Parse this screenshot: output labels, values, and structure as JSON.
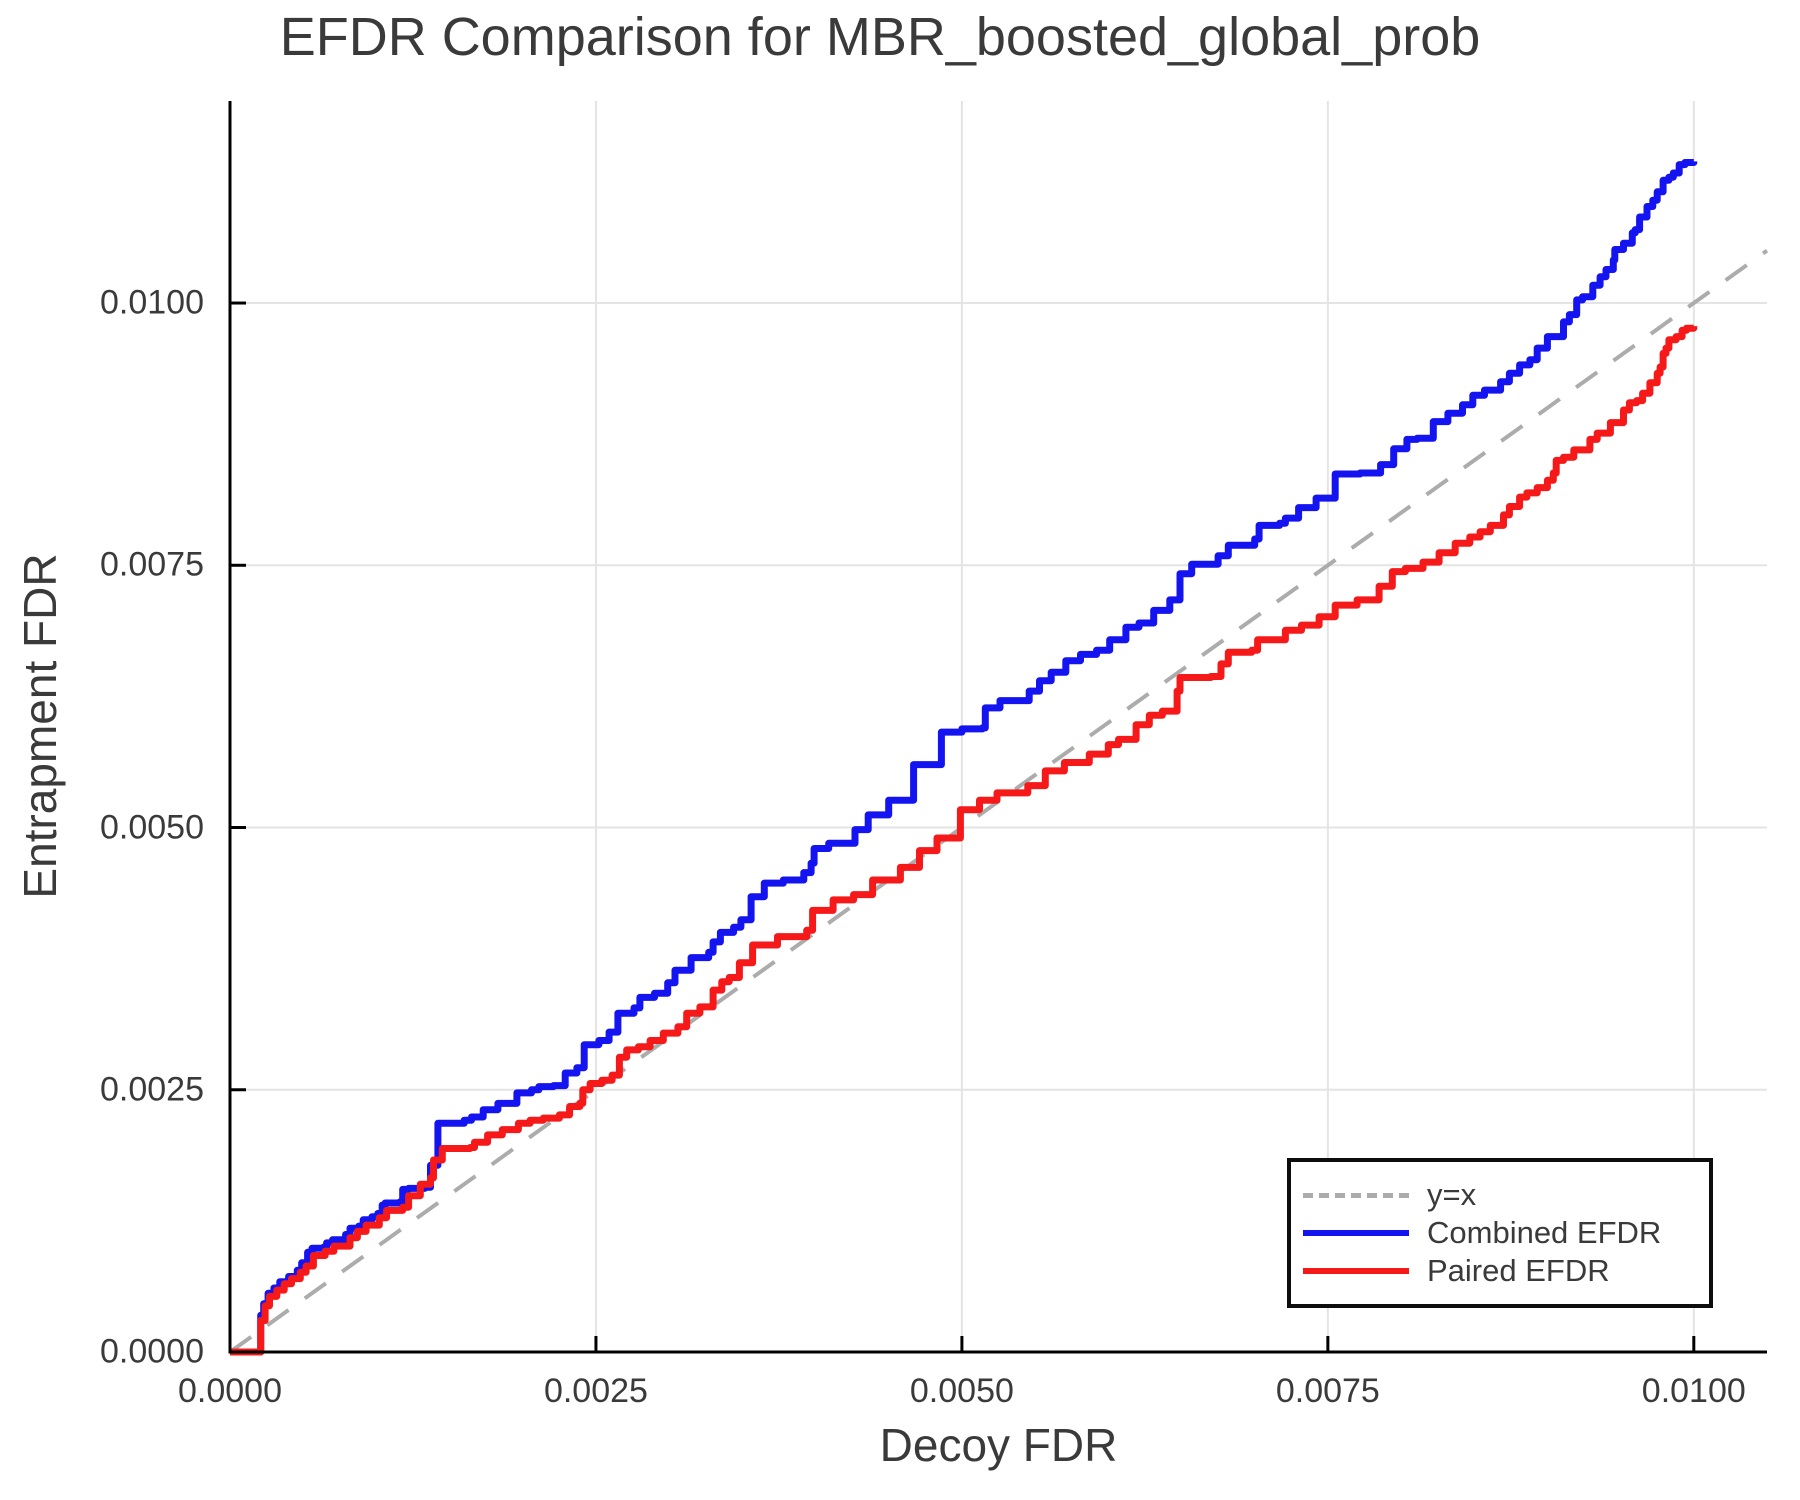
{
  "title": "EFDR Comparison for MBR_boosted_global_prob",
  "colors": {
    "background": "#ffffff",
    "spine": "#000000",
    "grid": "#e4e4e4",
    "text": "#3a3a3a",
    "diagonal": "#acacac",
    "combined": "#1414f0",
    "paired": "#f51919"
  },
  "chart_data": {
    "type": "line",
    "title": "EFDR Comparison for MBR_boosted_global_prob",
    "xlabel": "Decoy FDR",
    "ylabel": "Entrapment FDR",
    "xlim": [
      0,
      0.0105
    ],
    "ylim": [
      0,
      0.011926
    ],
    "grid": true,
    "x_ticks": [
      {
        "value": 0.0,
        "label": "0.0000"
      },
      {
        "value": 0.0025,
        "label": "0.0025"
      },
      {
        "value": 0.005,
        "label": "0.0050"
      },
      {
        "value": 0.0075,
        "label": "0.0075"
      },
      {
        "value": 0.01,
        "label": "0.0100"
      }
    ],
    "y_ticks": [
      {
        "value": 0.0,
        "label": "0.0000"
      },
      {
        "value": 0.0025,
        "label": "0.0025"
      },
      {
        "value": 0.005,
        "label": "0.0050"
      },
      {
        "value": 0.0075,
        "label": "0.0075"
      },
      {
        "value": 0.01,
        "label": "0.0100"
      }
    ],
    "legend": {
      "position": "bottom-right",
      "entries": [
        {
          "label": "y=x",
          "color": "#acacac",
          "dashed": true
        },
        {
          "label": "Combined EFDR",
          "color": "#1414f0",
          "dashed": false
        },
        {
          "label": "Paired EFDR",
          "color": "#f51919",
          "dashed": false
        }
      ]
    },
    "diagonal": {
      "name": "y=x",
      "from": [
        0,
        0
      ],
      "to": [
        0.0105,
        0.0105
      ]
    },
    "series": [
      {
        "name": "Combined EFDR",
        "color": "#1414f0",
        "step": true,
        "points": [
          [
            0,
            0
          ],
          [
            0.00019,
            0
          ],
          [
            0.00021,
            0.00035
          ],
          [
            0.00023,
            0.00046
          ],
          [
            0.00026,
            0.00056
          ],
          [
            0.0003,
            0.00061
          ],
          [
            0.00034,
            0.00067
          ],
          [
            0.0004,
            0.00072
          ],
          [
            0.00046,
            0.00078
          ],
          [
            0.00049,
            0.00085
          ],
          [
            0.00053,
            0.00095
          ],
          [
            0.00056,
            0.00099
          ],
          [
            0.00064,
            0.001
          ],
          [
            0.00066,
            0.00104
          ],
          [
            0.0007,
            0.00107
          ],
          [
            0.00079,
            0.00112
          ],
          [
            0.00082,
            0.00118
          ],
          [
            0.00088,
            0.0012
          ],
          [
            0.00091,
            0.00126
          ],
          [
            0.00097,
            0.00129
          ],
          [
            0.00101,
            0.00132
          ],
          [
            0.00104,
            0.0014
          ],
          [
            0.00106,
            0.00142
          ],
          [
            0.00116,
            0.00143
          ],
          [
            0.00118,
            0.00155
          ],
          [
            0.00122,
            0.00156
          ],
          [
            0.00133,
            0.00157
          ],
          [
            0.00137,
            0.00178
          ],
          [
            0.00142,
            0.00218
          ],
          [
            0.0016,
            0.00221
          ],
          [
            0.00165,
            0.00224
          ],
          [
            0.00173,
            0.00231
          ],
          [
            0.00183,
            0.00237
          ],
          [
            0.00196,
            0.00247
          ],
          [
            0.00206,
            0.0025
          ],
          [
            0.00211,
            0.00253
          ],
          [
            0.00221,
            0.00254
          ],
          [
            0.00229,
            0.00266
          ],
          [
            0.00237,
            0.00271
          ],
          [
            0.00242,
            0.00293
          ],
          [
            0.00252,
            0.00297
          ],
          [
            0.00259,
            0.00305
          ],
          [
            0.00265,
            0.00323
          ],
          [
            0.00276,
            0.00328
          ],
          [
            0.0028,
            0.00338
          ],
          [
            0.0029,
            0.00342
          ],
          [
            0.00299,
            0.00352
          ],
          [
            0.00304,
            0.00364
          ],
          [
            0.00315,
            0.00376
          ],
          [
            0.00327,
            0.00381
          ],
          [
            0.0033,
            0.00391
          ],
          [
            0.00335,
            0.004
          ],
          [
            0.00344,
            0.00405
          ],
          [
            0.00349,
            0.00412
          ],
          [
            0.00356,
            0.00434
          ],
          [
            0.00365,
            0.00447
          ],
          [
            0.00378,
            0.0045
          ],
          [
            0.00392,
            0.00457
          ],
          [
            0.00397,
            0.00466
          ],
          [
            0.00399,
            0.0048
          ],
          [
            0.00409,
            0.00485
          ],
          [
            0.00427,
            0.00498
          ],
          [
            0.00436,
            0.00512
          ],
          [
            0.0045,
            0.00526
          ],
          [
            0.00467,
            0.0056
          ],
          [
            0.00486,
            0.00591
          ],
          [
            0.005,
            0.00594
          ],
          [
            0.00514,
            0.00595
          ],
          [
            0.00516,
            0.00614
          ],
          [
            0.00526,
            0.00621
          ],
          [
            0.00546,
            0.0063
          ],
          [
            0.00553,
            0.0064
          ],
          [
            0.00561,
            0.00648
          ],
          [
            0.00571,
            0.00659
          ],
          [
            0.00581,
            0.00665
          ],
          [
            0.00592,
            0.00669
          ],
          [
            0.00601,
            0.00679
          ],
          [
            0.00612,
            0.00691
          ],
          [
            0.00621,
            0.00695
          ],
          [
            0.00631,
            0.00707
          ],
          [
            0.00642,
            0.00717
          ],
          [
            0.00649,
            0.00742
          ],
          [
            0.00657,
            0.00751
          ],
          [
            0.00675,
            0.00759
          ],
          [
            0.00682,
            0.00769
          ],
          [
            0.007,
            0.00775
          ],
          [
            0.00703,
            0.00788
          ],
          [
            0.00717,
            0.0079
          ],
          [
            0.00721,
            0.00795
          ],
          [
            0.0073,
            0.00805
          ],
          [
            0.00742,
            0.00814
          ],
          [
            0.00755,
            0.00837
          ],
          [
            0.00772,
            0.00838
          ],
          [
            0.00786,
            0.00846
          ],
          [
            0.00795,
            0.00861
          ],
          [
            0.00804,
            0.0087
          ],
          [
            0.00811,
            0.00871
          ],
          [
            0.00822,
            0.00887
          ],
          [
            0.00832,
            0.00895
          ],
          [
            0.00842,
            0.00903
          ],
          [
            0.00849,
            0.00912
          ],
          [
            0.00857,
            0.00917
          ],
          [
            0.00868,
            0.00925
          ],
          [
            0.00874,
            0.00933
          ],
          [
            0.00881,
            0.00941
          ],
          [
            0.00888,
            0.00946
          ],
          [
            0.00893,
            0.00957
          ],
          [
            0.009,
            0.00968
          ],
          [
            0.00911,
            0.00982
          ],
          [
            0.00915,
            0.00989
          ],
          [
            0.0092,
            0.01003
          ],
          [
            0.00924,
            0.01006
          ],
          [
            0.00931,
            0.01017
          ],
          [
            0.00936,
            0.01025
          ],
          [
            0.0094,
            0.01032
          ],
          [
            0.00945,
            0.01041
          ],
          [
            0.00946,
            0.01051
          ],
          [
            0.00952,
            0.01057
          ],
          [
            0.00958,
            0.01067
          ],
          [
            0.0096,
            0.0107
          ],
          [
            0.00963,
            0.01082
          ],
          [
            0.00968,
            0.01092
          ],
          [
            0.00972,
            0.01098
          ],
          [
            0.00975,
            0.01106
          ],
          [
            0.00979,
            0.01117
          ],
          [
            0.00983,
            0.0112
          ],
          [
            0.00986,
            0.01124
          ],
          [
            0.0099,
            0.01132
          ],
          [
            0.00994,
            0.01134
          ],
          [
            0.01,
            0.01135
          ]
        ]
      },
      {
        "name": "Paired EFDR",
        "color": "#f51919",
        "step": true,
        "points": [
          [
            0,
            0
          ],
          [
            0.00019,
            0
          ],
          [
            0.00021,
            0.0003
          ],
          [
            0.00024,
            0.00044
          ],
          [
            0.00027,
            0.00053
          ],
          [
            0.00032,
            0.00059
          ],
          [
            0.00037,
            0.00065
          ],
          [
            0.00042,
            0.0007
          ],
          [
            0.00048,
            0.00076
          ],
          [
            0.00052,
            0.00082
          ],
          [
            0.00057,
            0.00092
          ],
          [
            0.00065,
            0.00096
          ],
          [
            0.00071,
            0.00101
          ],
          [
            0.00082,
            0.00109
          ],
          [
            0.00087,
            0.00115
          ],
          [
            0.00093,
            0.00121
          ],
          [
            0.00102,
            0.00128
          ],
          [
            0.00107,
            0.00135
          ],
          [
            0.00118,
            0.00138
          ],
          [
            0.00122,
            0.00149
          ],
          [
            0.0013,
            0.0016
          ],
          [
            0.00137,
            0.00166
          ],
          [
            0.00139,
            0.00183
          ],
          [
            0.00145,
            0.00194
          ],
          [
            0.00164,
            0.00195
          ],
          [
            0.00167,
            0.002
          ],
          [
            0.00176,
            0.00207
          ],
          [
            0.00186,
            0.00212
          ],
          [
            0.00197,
            0.00218
          ],
          [
            0.00205,
            0.00221
          ],
          [
            0.00214,
            0.00223
          ],
          [
            0.00225,
            0.00226
          ],
          [
            0.00232,
            0.00234
          ],
          [
            0.00239,
            0.00237
          ],
          [
            0.00241,
            0.0025
          ],
          [
            0.00246,
            0.00256
          ],
          [
            0.00254,
            0.00259
          ],
          [
            0.00261,
            0.00264
          ],
          [
            0.00266,
            0.00281
          ],
          [
            0.00271,
            0.00288
          ],
          [
            0.00279,
            0.00291
          ],
          [
            0.00287,
            0.00297
          ],
          [
            0.00296,
            0.00304
          ],
          [
            0.00306,
            0.0031
          ],
          [
            0.00312,
            0.00323
          ],
          [
            0.00321,
            0.00329
          ],
          [
            0.0033,
            0.00345
          ],
          [
            0.00336,
            0.00353
          ],
          [
            0.00341,
            0.00357
          ],
          [
            0.00348,
            0.00371
          ],
          [
            0.00357,
            0.00388
          ],
          [
            0.00374,
            0.00396
          ],
          [
            0.00394,
            0.00402
          ],
          [
            0.00398,
            0.00421
          ],
          [
            0.00412,
            0.00431
          ],
          [
            0.00426,
            0.00436
          ],
          [
            0.00439,
            0.0045
          ],
          [
            0.00458,
            0.00462
          ],
          [
            0.00471,
            0.00478
          ],
          [
            0.00483,
            0.0049
          ],
          [
            0.00499,
            0.00517
          ],
          [
            0.00512,
            0.00526
          ],
          [
            0.00524,
            0.00533
          ],
          [
            0.00545,
            0.0054
          ],
          [
            0.00557,
            0.00554
          ],
          [
            0.0057,
            0.00562
          ],
          [
            0.00587,
            0.0057
          ],
          [
            0.006,
            0.00579
          ],
          [
            0.00607,
            0.00584
          ],
          [
            0.00619,
            0.00598
          ],
          [
            0.00628,
            0.00607
          ],
          [
            0.00637,
            0.00611
          ],
          [
            0.00647,
            0.0063
          ],
          [
            0.00649,
            0.00643
          ],
          [
            0.0067,
            0.00644
          ],
          [
            0.00677,
            0.00656
          ],
          [
            0.00682,
            0.00667
          ],
          [
            0.00698,
            0.00669
          ],
          [
            0.00702,
            0.00679
          ],
          [
            0.00721,
            0.00688
          ],
          [
            0.00732,
            0.00693
          ],
          [
            0.00744,
            0.00701
          ],
          [
            0.00755,
            0.00712
          ],
          [
            0.0077,
            0.00717
          ],
          [
            0.00785,
            0.0073
          ],
          [
            0.00794,
            0.00744
          ],
          [
            0.00803,
            0.00747
          ],
          [
            0.00815,
            0.00753
          ],
          [
            0.00826,
            0.00762
          ],
          [
            0.00837,
            0.00771
          ],
          [
            0.00847,
            0.00777
          ],
          [
            0.00854,
            0.00782
          ],
          [
            0.00861,
            0.00788
          ],
          [
            0.0087,
            0.00798
          ],
          [
            0.00874,
            0.00806
          ],
          [
            0.00881,
            0.00815
          ],
          [
            0.00886,
            0.00819
          ],
          [
            0.00893,
            0.00824
          ],
          [
            0.009,
            0.00831
          ],
          [
            0.00904,
            0.00838
          ],
          [
            0.00906,
            0.0085
          ],
          [
            0.00911,
            0.00853
          ],
          [
            0.00918,
            0.0086
          ],
          [
            0.00929,
            0.0087
          ],
          [
            0.00934,
            0.00876
          ],
          [
            0.00943,
            0.00886
          ],
          [
            0.00952,
            0.00898
          ],
          [
            0.00956,
            0.00905
          ],
          [
            0.00961,
            0.00907
          ],
          [
            0.00965,
            0.00914
          ],
          [
            0.0097,
            0.00924
          ],
          [
            0.00975,
            0.00933
          ],
          [
            0.00977,
            0.00939
          ],
          [
            0.00979,
            0.00952
          ],
          [
            0.00981,
            0.00957
          ],
          [
            0.00983,
            0.00965
          ],
          [
            0.00988,
            0.00968
          ],
          [
            0.00992,
            0.00974
          ],
          [
            0.00995,
            0.00976
          ],
          [
            0.01,
            0.00978
          ]
        ]
      }
    ]
  }
}
